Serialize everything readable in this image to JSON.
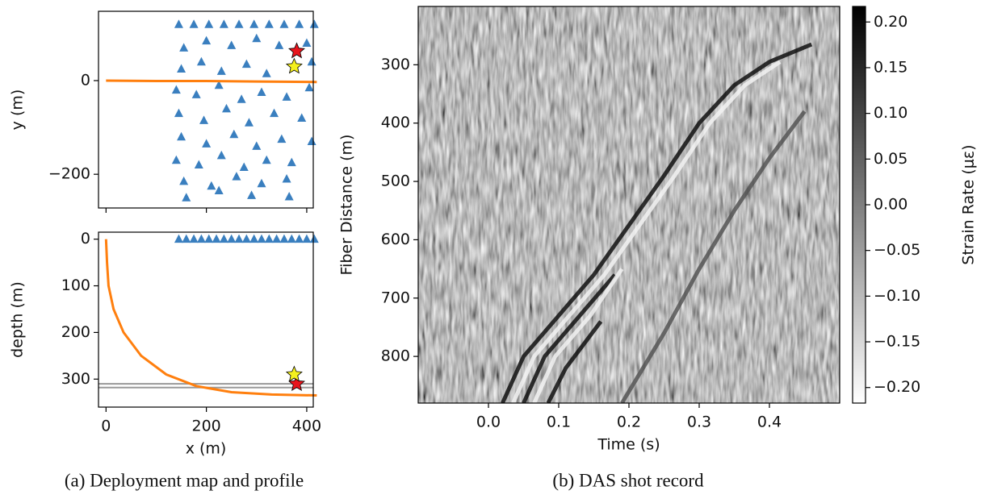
{
  "captions": [
    "(a) Deployment map and profile",
    "(b) DAS shot record"
  ],
  "chart_data": [
    {
      "type": "scatter",
      "ylabel": "y (m)",
      "xlim": [
        -15,
        413
      ],
      "ylim": [
        -272,
        148
      ],
      "xticks": [
        0,
        200,
        400
      ],
      "xtick_labels": false,
      "yticks": [
        {
          "value": -200,
          "label": "−200"
        },
        0
      ],
      "series": [
        {
          "marker": "triangle",
          "color": "#3a7fbf",
          "x": [
            145,
            175,
            205,
            235,
            265,
            295,
            325,
            355,
            385,
            415,
            155,
            200,
            250,
            300,
            345,
            400,
            150,
            190,
            230,
            280,
            320,
            410,
            140,
            180,
            225,
            270,
            310,
            360,
            405,
            145,
            195,
            240,
            285,
            335,
            390,
            150,
            200,
            255,
            300,
            350,
            410,
            140,
            185,
            230,
            275,
            320,
            370,
            155,
            210,
            260,
            310,
            360,
            160,
            225,
            290,
            365
          ],
          "values": [
            120,
            120,
            120,
            120,
            120,
            120,
            120,
            120,
            120,
            120,
            70,
            85,
            75,
            90,
            75,
            80,
            25,
            40,
            20,
            35,
            15,
            40,
            -20,
            -30,
            -10,
            -40,
            -25,
            -35,
            -15,
            -70,
            -85,
            -60,
            -90,
            -70,
            -80,
            -120,
            -135,
            -115,
            -140,
            -125,
            -130,
            -170,
            -180,
            -160,
            -185,
            -170,
            -175,
            -215,
            -225,
            -205,
            -220,
            -210,
            -250,
            -235,
            -245,
            -248
          ]
        },
        {
          "marker": "line",
          "color": "#ff7f0e",
          "x": [
            0,
            100,
            200,
            300,
            420
          ],
          "values": [
            0,
            -1,
            -1,
            -2,
            -3
          ]
        },
        {
          "marker": "star",
          "color": "#e8141c",
          "x": [
            380
          ],
          "values": [
            63
          ]
        },
        {
          "marker": "star",
          "color": "#f5f01e",
          "x": [
            375
          ],
          "values": [
            30
          ]
        }
      ]
    },
    {
      "type": "scatter",
      "xlabel": "x (m)",
      "ylabel": "depth (m)",
      "xlim": [
        -15,
        413
      ],
      "ylim": [
        360,
        -15
      ],
      "xticks": [
        0,
        200,
        400
      ],
      "xtick_labels": true,
      "yticks": [
        0,
        100,
        200,
        300
      ],
      "hlines": [
        310,
        318
      ],
      "hline_color": "#999999",
      "series": [
        {
          "marker": "triangle",
          "color": "#3a7fbf",
          "x": [
            145,
            160,
            175,
            190,
            205,
            220,
            235,
            250,
            265,
            280,
            295,
            310,
            325,
            340,
            355,
            370,
            385,
            400,
            415
          ],
          "values": [
            0,
            0,
            0,
            0,
            0,
            0,
            0,
            0,
            0,
            0,
            0,
            0,
            0,
            0,
            0,
            0,
            0,
            0,
            0
          ]
        },
        {
          "marker": "line",
          "color": "#ff7f0e",
          "x": [
            0,
            2,
            5,
            15,
            35,
            70,
            120,
            180,
            250,
            330,
            420
          ],
          "values": [
            0,
            50,
            100,
            150,
            200,
            250,
            290,
            315,
            328,
            333,
            335
          ]
        },
        {
          "marker": "star",
          "color": "#e8141c",
          "x": [
            380
          ],
          "values": [
            310
          ]
        },
        {
          "marker": "star",
          "color": "#f5f01e",
          "x": [
            375
          ],
          "values": [
            290
          ]
        }
      ]
    },
    {
      "type": "heatmap",
      "xlabel": "Time (s)",
      "ylabel": "Fiber Distance (m)",
      "colorbar_label": "Strain Rate (με)",
      "xlim": [
        -0.1,
        0.5
      ],
      "ylim": [
        880,
        200
      ],
      "xticks": [
        {
          "value": 0,
          "label": "0.0"
        },
        0.1,
        0.2,
        0.3,
        0.4
      ],
      "yticks": [
        300,
        400,
        500,
        600,
        700,
        800
      ],
      "clim": [
        -0.217,
        0.217
      ],
      "cticks": [
        {
          "value": 0.2,
          "label": "0.20"
        },
        0.15,
        {
          "value": 0.1,
          "label": "0.10"
        },
        0.05,
        {
          "value": 0,
          "label": "0.00"
        },
        {
          "value": -0.05,
          "label": "−0.05"
        },
        {
          "value": -0.1,
          "label": "−0.10"
        },
        {
          "value": -0.15,
          "label": "−0.15"
        },
        {
          "value": -0.2,
          "label": "−0.20"
        }
      ],
      "wavefronts": [
        {
          "color": "#111111",
          "x": [
            0.02,
            0.05,
            0.1,
            0.15,
            0.2,
            0.25,
            0.3,
            0.35,
            0.4,
            0.46
          ],
          "y": [
            880,
            800,
            730,
            660,
            575,
            490,
            400,
            335,
            295,
            265
          ]
        },
        {
          "color": "#f2f2f2",
          "x": [
            0.035,
            0.065,
            0.115,
            0.165,
            0.215,
            0.265,
            0.315,
            0.365,
            0.415
          ],
          "y": [
            880,
            800,
            730,
            660,
            575,
            490,
            400,
            335,
            295
          ]
        },
        {
          "color": "#111111",
          "x": [
            0.05,
            0.08,
            0.13,
            0.18
          ],
          "y": [
            880,
            800,
            730,
            660
          ]
        },
        {
          "color": "#f2f2f2",
          "x": [
            0.065,
            0.095,
            0.145,
            0.19
          ],
          "y": [
            880,
            800,
            730,
            650
          ]
        },
        {
          "color": "#111111",
          "x": [
            0.085,
            0.11,
            0.16
          ],
          "y": [
            880,
            820,
            740
          ]
        },
        {
          "color": "#555555",
          "x": [
            0.19,
            0.25,
            0.3,
            0.35,
            0.4,
            0.45
          ],
          "y": [
            880,
            760,
            650,
            550,
            460,
            380
          ]
        }
      ]
    }
  ]
}
